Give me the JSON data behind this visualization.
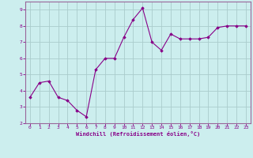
{
  "x": [
    0,
    1,
    2,
    3,
    4,
    5,
    6,
    7,
    8,
    9,
    10,
    11,
    12,
    13,
    14,
    15,
    16,
    17,
    18,
    19,
    20,
    21,
    22,
    23
  ],
  "y": [
    3.6,
    4.5,
    4.6,
    3.6,
    3.4,
    2.8,
    2.4,
    5.3,
    6.0,
    6.0,
    7.3,
    8.4,
    9.1,
    7.0,
    6.5,
    7.5,
    7.2,
    7.2,
    7.2,
    7.3,
    7.9,
    8.0,
    8.0,
    8.0
  ],
  "line_color": "#880088",
  "marker": "D",
  "marker_size": 1.8,
  "bg_color": "#cceeee",
  "grid_color": "#aacccc",
  "axis_label_color": "#880088",
  "tick_color": "#880088",
  "xlabel": "Windchill (Refroidissement éolien,°C)",
  "ylim": [
    2,
    9.5
  ],
  "xlim": [
    -0.5,
    23.5
  ],
  "yticks": [
    2,
    3,
    4,
    5,
    6,
    7,
    8,
    9
  ],
  "xticks": [
    0,
    1,
    2,
    3,
    4,
    5,
    6,
    7,
    8,
    9,
    10,
    11,
    12,
    13,
    14,
    15,
    16,
    17,
    18,
    19,
    20,
    21,
    22,
    23
  ],
  "spine_color": "#880088",
  "fig_bg_color": "#cceeee",
  "border_color": "#996699"
}
